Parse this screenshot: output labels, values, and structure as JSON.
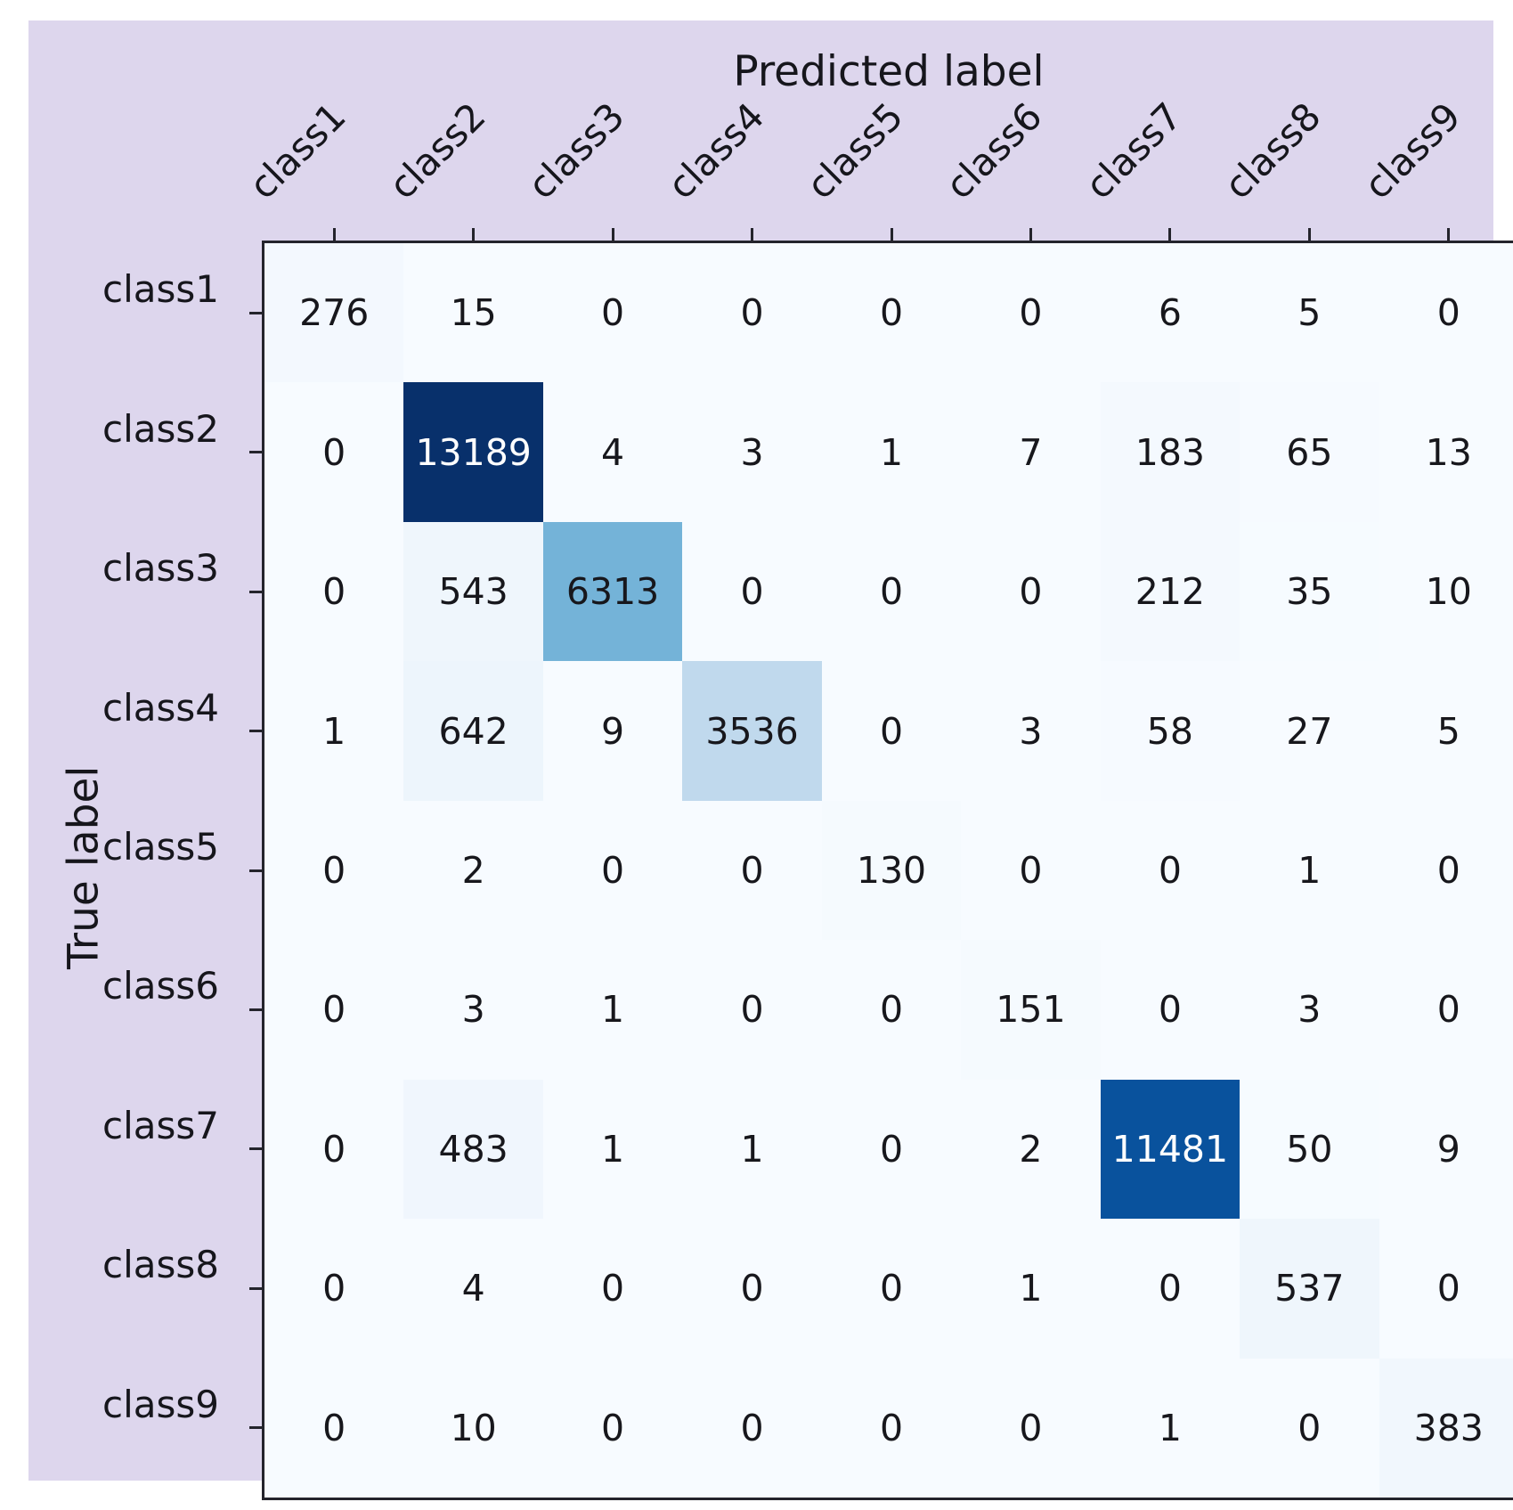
{
  "figure": {
    "background_color": "#ddd6ed",
    "page_background": "#ffffff",
    "spine_color": "#24242c",
    "text_color": "#16161c"
  },
  "chart_data": {
    "type": "heatmap",
    "subtype": "confusion-matrix",
    "title": "",
    "xlabel": "Predicted label",
    "ylabel": "True label",
    "x_tick_labels": [
      "class1",
      "class2",
      "class3",
      "class4",
      "class5",
      "class6",
      "class7",
      "class8",
      "class9"
    ],
    "y_tick_labels": [
      "class1",
      "class2",
      "class3",
      "class4",
      "class5",
      "class6",
      "class7",
      "class8",
      "class9"
    ],
    "vmin": 0,
    "vmax": 13189,
    "colormap": "Blues",
    "colormap_stops": [
      [
        247,
        251,
        255
      ],
      [
        222,
        235,
        247
      ],
      [
        198,
        219,
        239
      ],
      [
        158,
        202,
        225
      ],
      [
        107,
        174,
        214
      ],
      [
        66,
        146,
        198
      ],
      [
        33,
        113,
        181
      ],
      [
        8,
        81,
        156
      ],
      [
        8,
        48,
        107
      ]
    ],
    "cell_text_dark": "#17171c",
    "cell_text_light": "#ffffff",
    "grid": false,
    "legend": "none",
    "matrix": [
      [
        276,
        15,
        0,
        0,
        0,
        0,
        6,
        5,
        0
      ],
      [
        0,
        13189,
        4,
        3,
        1,
        7,
        183,
        65,
        13
      ],
      [
        0,
        543,
        6313,
        0,
        0,
        0,
        212,
        35,
        10
      ],
      [
        1,
        642,
        9,
        3536,
        0,
        3,
        58,
        27,
        5
      ],
      [
        0,
        2,
        0,
        0,
        130,
        0,
        0,
        1,
        0
      ],
      [
        0,
        3,
        1,
        0,
        0,
        151,
        0,
        3,
        0
      ],
      [
        0,
        483,
        1,
        1,
        0,
        2,
        11481,
        50,
        9
      ],
      [
        0,
        4,
        0,
        0,
        0,
        1,
        0,
        537,
        0
      ],
      [
        0,
        10,
        0,
        0,
        0,
        0,
        1,
        0,
        383
      ]
    ]
  }
}
